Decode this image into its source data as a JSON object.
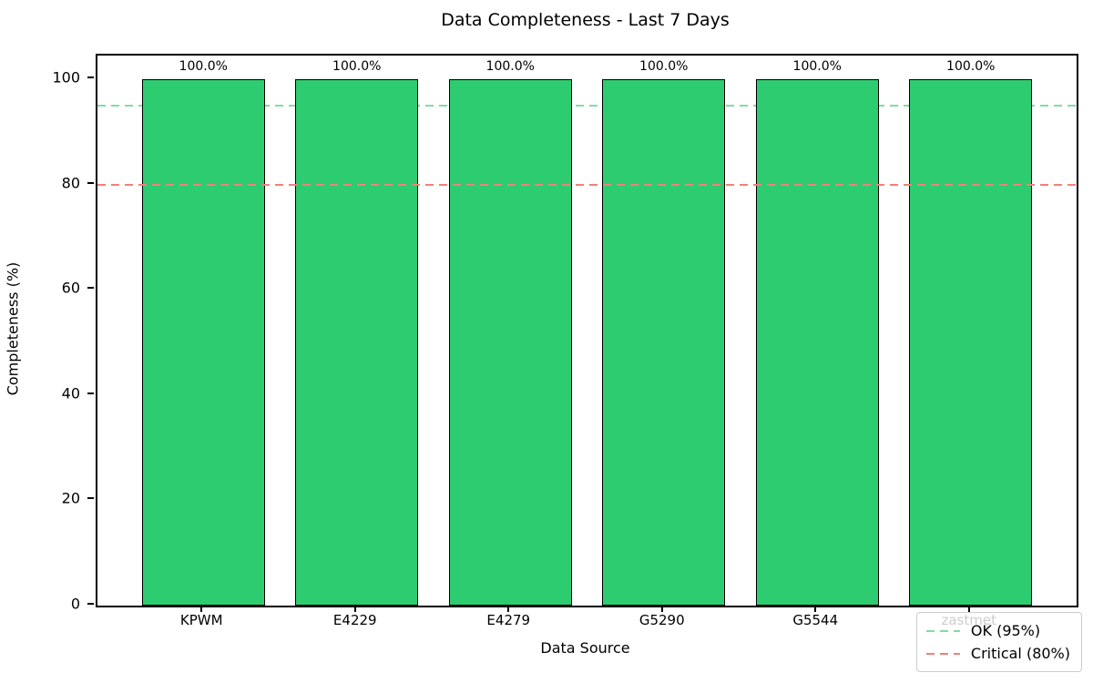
{
  "chart_data": {
    "type": "bar",
    "title": "Data Completeness - Last 7 Days",
    "xlabel": "Data Source",
    "ylabel": "Completeness (%)",
    "categories": [
      "KPWM",
      "E4229",
      "E4279",
      "G5290",
      "G5544",
      "zastmet"
    ],
    "values": [
      100.0,
      100.0,
      100.0,
      100.0,
      100.0,
      100.0
    ],
    "bar_value_labels": [
      "100.0%",
      "100.0%",
      "100.0%",
      "100.0%",
      "100.0%",
      "100.0%"
    ],
    "yticks": [
      0,
      20,
      40,
      60,
      80,
      100
    ],
    "ylim": [
      0,
      104.5
    ],
    "grid": false,
    "bar_color": "#2ecc71",
    "bar_edge_color": "#000000",
    "legend_position": "lower right",
    "reference_lines": [
      {
        "label": "OK (95%)",
        "value": 95,
        "color": "#7edda4",
        "style": "dashed",
        "draw_over_bars": false
      },
      {
        "label": "Critical (80%)",
        "value": 80,
        "color": "#f0817a",
        "style": "dashed",
        "draw_over_bars": true
      }
    ]
  }
}
